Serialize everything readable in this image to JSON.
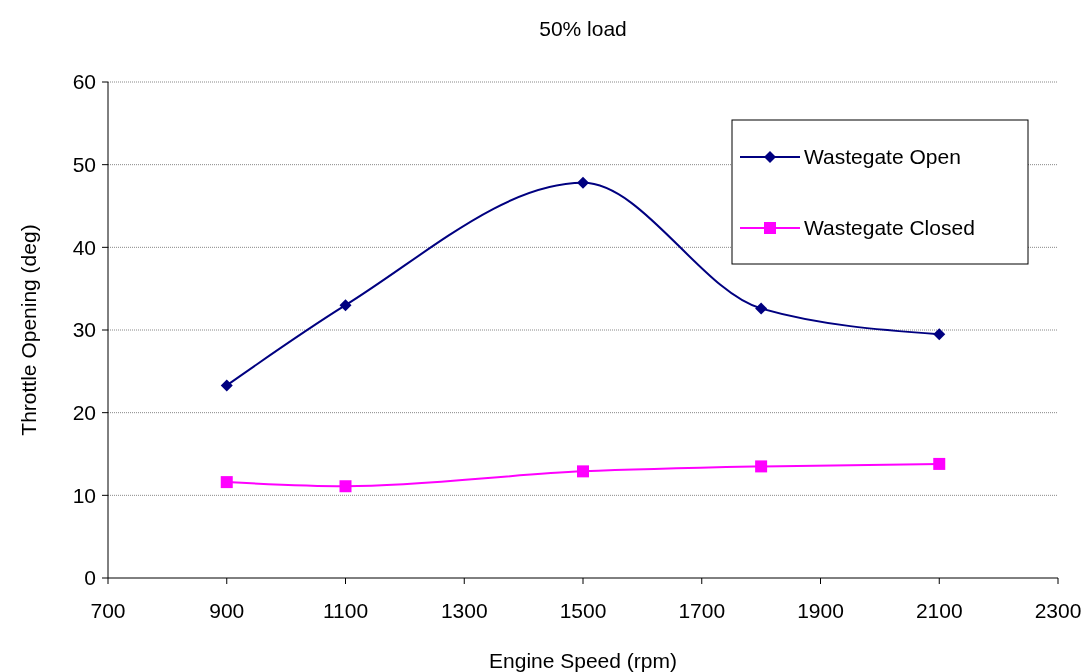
{
  "chart_data": {
    "type": "line",
    "title": "50% load",
    "xlabel": "Engine Speed (rpm)",
    "ylabel": "Throttle Opening (deg)",
    "x": [
      900,
      1100,
      1500,
      1800,
      2100
    ],
    "series": [
      {
        "name": "Wastegate Open",
        "color": "#000080",
        "marker": "diamond",
        "values": [
          23.3,
          33.0,
          47.8,
          32.6,
          29.5
        ]
      },
      {
        "name": "Wastegate Closed",
        "color": "#ff00ff",
        "marker": "square",
        "values": [
          11.6,
          11.1,
          12.9,
          13.5,
          13.8
        ]
      }
    ],
    "xlim": [
      700,
      2300
    ],
    "xticks": [
      700,
      900,
      1100,
      1300,
      1500,
      1700,
      1900,
      2100,
      2300
    ],
    "ylim": [
      0,
      60
    ],
    "yticks": [
      0,
      10,
      20,
      30,
      40,
      50,
      60
    ],
    "grid": "y",
    "legend": "top right",
    "line_style": "solid"
  }
}
